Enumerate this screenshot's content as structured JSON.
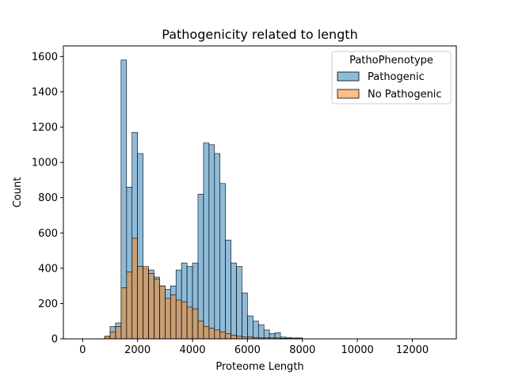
{
  "chart_data": {
    "type": "histogram",
    "title": "Pathogenicity related to length",
    "xlabel": "Proteome Length",
    "ylabel": "Count",
    "xlim": [
      -700,
      13600
    ],
    "ylim": [
      0,
      1660
    ],
    "x_ticks": [
      0,
      2000,
      4000,
      6000,
      8000,
      10000,
      12000
    ],
    "x_tick_labels": [
      "0",
      "2000",
      "4000",
      "6000",
      "8000",
      "10000",
      "12000"
    ],
    "y_ticks": [
      0,
      200,
      400,
      600,
      800,
      1000,
      1200,
      1400,
      1600
    ],
    "y_tick_labels": [
      "0",
      "200",
      "400",
      "600",
      "800",
      "1000",
      "1200",
      "1400",
      "1600"
    ],
    "bin_width": 200,
    "bin_edges_start": 800,
    "grid": false,
    "legend": {
      "title": "PathoPhenotype",
      "placement": "top-right",
      "entries": [
        "Pathogenic",
        "No Pathogenic"
      ]
    },
    "series": [
      {
        "name": "Pathogenic",
        "color": "#1f77b4",
        "values": [
          10,
          70,
          90,
          1580,
          860,
          1170,
          1050,
          400,
          390,
          350,
          300,
          280,
          300,
          390,
          430,
          410,
          430,
          820,
          1110,
          1100,
          1050,
          880,
          560,
          430,
          410,
          260,
          130,
          100,
          80,
          50,
          30,
          35,
          10,
          8,
          5,
          5
        ]
      },
      {
        "name": "No Pathogenic",
        "color": "#ff7f0e",
        "values": [
          15,
          40,
          70,
          290,
          380,
          570,
          410,
          410,
          370,
          340,
          300,
          230,
          250,
          220,
          210,
          180,
          170,
          100,
          70,
          60,
          50,
          40,
          30,
          20,
          15,
          10,
          10,
          8,
          5,
          5,
          5,
          5,
          3,
          2,
          2,
          2
        ]
      }
    ]
  }
}
